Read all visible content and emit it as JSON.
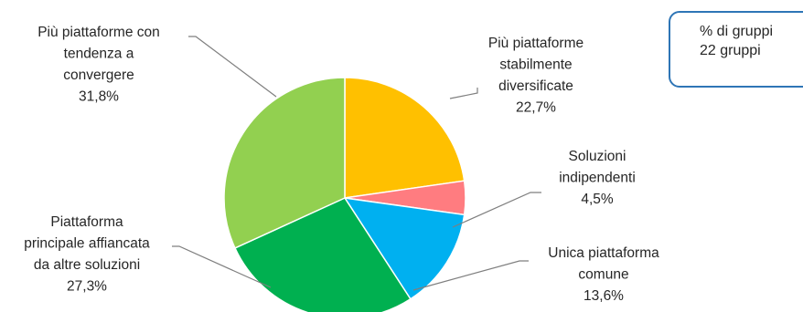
{
  "info_box": {
    "line1": "% di gruppi",
    "line2": "22 gruppi"
  },
  "chart_data": {
    "type": "pie",
    "title": "",
    "unit": "%",
    "slices": [
      {
        "label": [
          "Più piattaforme",
          "stabilmente",
          "diversificate"
        ],
        "value_label": "22,7%",
        "value": 22.7,
        "color": "#ffc000"
      },
      {
        "label": [
          "Soluzioni",
          "indipendenti"
        ],
        "value_label": "4,5%",
        "value": 4.5,
        "color": "#ff7c80"
      },
      {
        "label": [
          "Unica piattaforma",
          "comune"
        ],
        "value_label": "13,6%",
        "value": 13.6,
        "color": "#00b0f0"
      },
      {
        "label": [
          "Piattaforma",
          "principale affiancata",
          "da altre soluzioni"
        ],
        "value_label": "27,3%",
        "value": 27.3,
        "color": "#00b050"
      },
      {
        "label": [
          "Più piattaforme con",
          "tendenza a",
          "convergere"
        ],
        "value_label": "31,8%",
        "value": 31.8,
        "color": "#92d050"
      }
    ]
  }
}
